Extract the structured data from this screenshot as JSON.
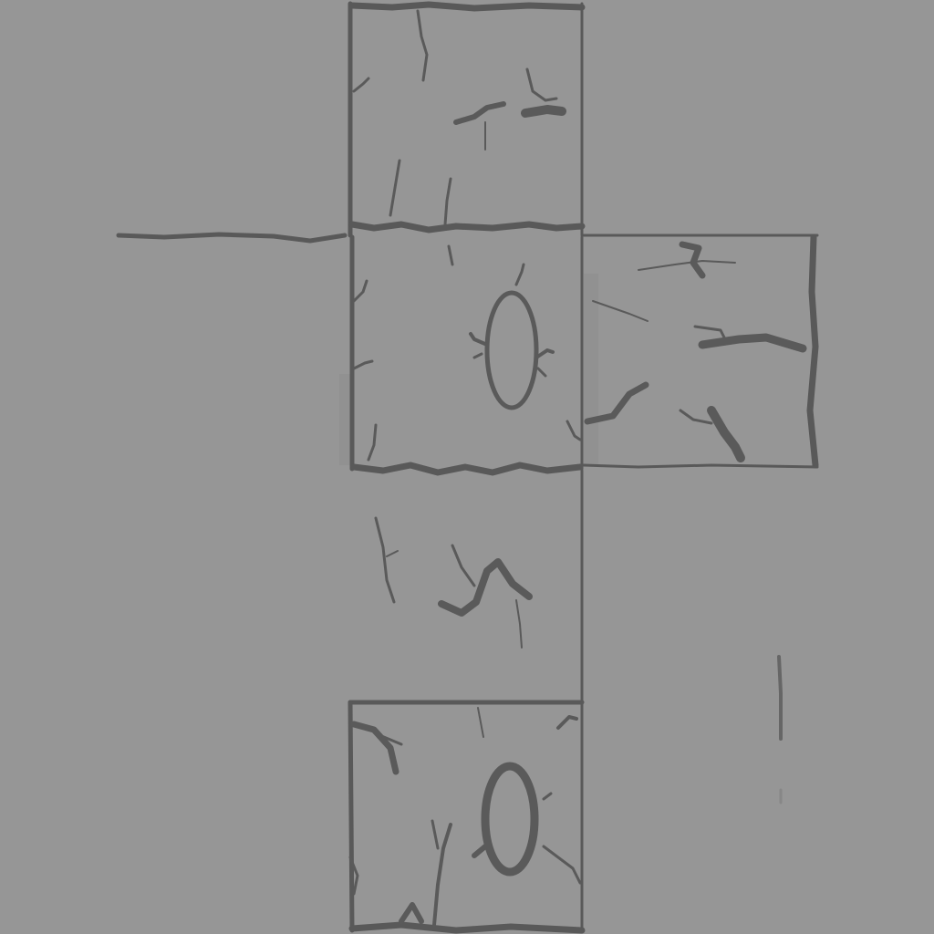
{
  "texture": {
    "colors": {
      "background": "#969696",
      "line": "#595959",
      "crack": "#5a5a5a"
    },
    "faces": [
      {
        "id": "top",
        "has_ring": false
      },
      {
        "id": "left-flap",
        "has_ring": false
      },
      {
        "id": "front",
        "has_ring": true
      },
      {
        "id": "right",
        "has_ring": false
      },
      {
        "id": "bottom",
        "has_ring": false
      },
      {
        "id": "back",
        "has_ring": true
      }
    ]
  }
}
